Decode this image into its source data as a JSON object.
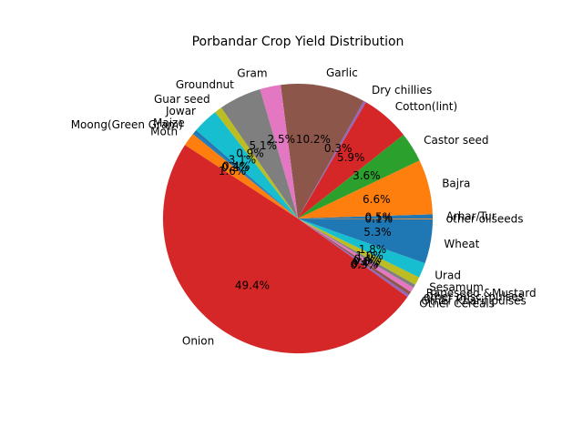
{
  "chart_data": {
    "type": "pie",
    "title": "Porbandar Crop Yield Distribution",
    "start_angle_deg": 0,
    "direction": "counterclockwise",
    "slices": [
      {
        "label": "Arhar/Tur",
        "pct_label": "0.5%",
        "value": 0.5,
        "color": "#1f77b4"
      },
      {
        "label": "Bajra",
        "pct_label": "6.6%",
        "value": 6.6,
        "color": "#ff7f0e"
      },
      {
        "label": "Castor seed",
        "pct_label": "3.6%",
        "value": 3.6,
        "color": "#2ca02c"
      },
      {
        "label": "Cotton(lint)",
        "pct_label": "5.9%",
        "value": 5.9,
        "color": "#d62728"
      },
      {
        "label": "Dry chillies",
        "pct_label": "0.3%",
        "value": 0.3,
        "color": "#9467bd"
      },
      {
        "label": "Garlic",
        "pct_label": "10.2%",
        "value": 10.2,
        "color": "#8c564b"
      },
      {
        "label": "Gram",
        "pct_label": "2.5%",
        "value": 2.5,
        "color": "#e377c2"
      },
      {
        "label": "Groundnut",
        "pct_label": "5.1%",
        "value": 5.1,
        "color": "#7f7f7f"
      },
      {
        "label": "Guar seed",
        "pct_label": "0.9%",
        "value": 0.9,
        "color": "#bcbd22"
      },
      {
        "label": "Jowar",
        "pct_label": "3.1%",
        "value": 3.1,
        "color": "#17becf"
      },
      {
        "label": "Maize",
        "pct_label": "0.4%",
        "value": 0.4,
        "color": "#1f77b4"
      },
      {
        "label": "Moong(Green Gram)",
        "pct_label": "0.2%",
        "value": 0.2,
        "color": "#1f77b4"
      },
      {
        "label": "Moth",
        "pct_label": "1.6%",
        "value": 1.6,
        "color": "#ff7f0e"
      },
      {
        "label": "Onion",
        "pct_label": "49.4%",
        "value": 49.4,
        "color": "#d62728"
      },
      {
        "label": "Other Cereals",
        "pct_label": "0.3%",
        "value": 0.3,
        "color": "#9467bd"
      },
      {
        "label": "Other Kharif pulses",
        "pct_label": "0.4%",
        "value": 0.4,
        "color": "#8c564b"
      },
      {
        "label": "other misc. pulses",
        "pct_label": "0.6%",
        "value": 0.6,
        "color": "#e377c2"
      },
      {
        "label": "Rapeseed &Mustard",
        "pct_label": "0.4%",
        "value": 0.4,
        "color": "#7f7f7f"
      },
      {
        "label": "Sesamum",
        "pct_label": "1.0%",
        "value": 1.0,
        "color": "#bcbd22"
      },
      {
        "label": "Urad",
        "pct_label": "1.8%",
        "value": 1.8,
        "color": "#17becf"
      },
      {
        "label": "Wheat",
        "pct_label": "5.3%",
        "value": 5.3,
        "color": "#1f77b4"
      },
      {
        "label": "other oilseeds",
        "pct_label": "0.1%",
        "value": 0.1,
        "color": "#ff7f0e"
      }
    ]
  }
}
